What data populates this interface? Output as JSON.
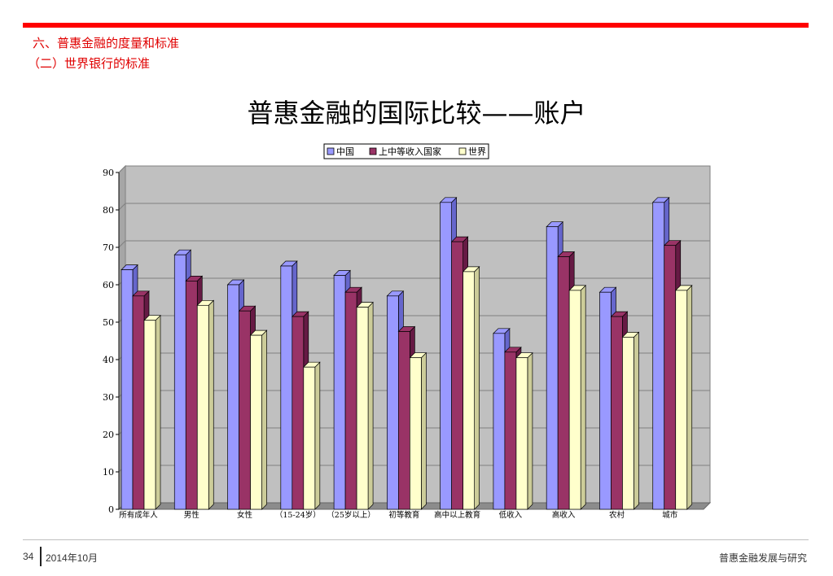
{
  "header": {
    "section_title": "六、普惠金融的度量和标准",
    "subsection_title": "（二）世界银行的标准"
  },
  "slide_title": "普惠金融的国际比较——账户",
  "footer": {
    "page_number": "34",
    "date": "2014年10月",
    "org": "普惠金融发展与研究"
  },
  "colors": {
    "accent": "#ff0000",
    "plot_bg": "#c0c0c0",
    "series": [
      "#9999ff",
      "#993366",
      "#ffffcc"
    ]
  },
  "chart_data": {
    "type": "bar",
    "variant": "3d-clustered",
    "categories": [
      "所有成年人",
      "男性",
      "女性",
      "（15-24岁）",
      "（25岁以上）",
      "初等教育",
      "高中以上教育",
      "低收入",
      "高收入",
      "农村",
      "城市"
    ],
    "series": [
      {
        "name": "中国",
        "values": [
          64,
          68,
          60,
          65,
          62.5,
          57,
          82,
          47,
          75.5,
          58,
          82
        ]
      },
      {
        "name": "上中等收入国家",
        "values": [
          57,
          61,
          53,
          51.5,
          58,
          47.5,
          71.5,
          42,
          67.5,
          51.5,
          70.5
        ]
      },
      {
        "name": "世界",
        "values": [
          50.5,
          54.5,
          46.5,
          38,
          54,
          40.5,
          63.5,
          40.5,
          58.5,
          46,
          58.5
        ]
      }
    ],
    "ylim": [
      0,
      90
    ],
    "yticks": [
      "0",
      "10",
      "20",
      "30",
      "40",
      "50",
      "60",
      "70",
      "80",
      "90"
    ],
    "grid": true,
    "legend_position": "top"
  }
}
